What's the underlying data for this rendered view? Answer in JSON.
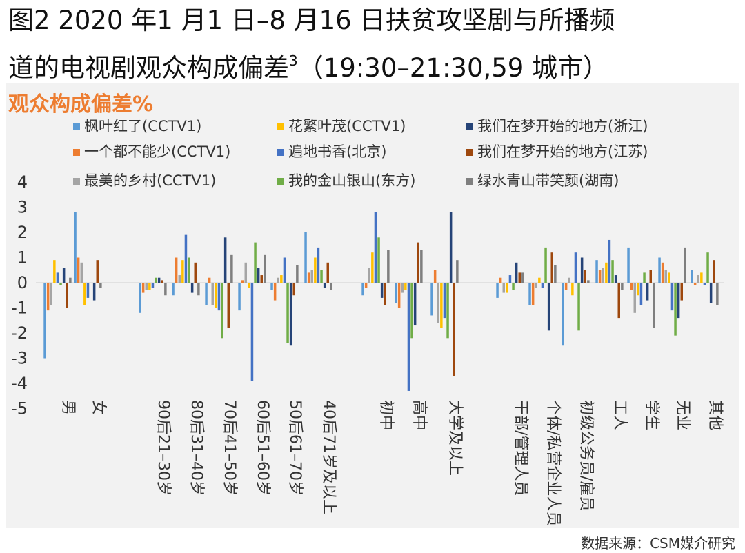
{
  "title_line1": "图2 2020 年1 月1 日–8 月16 日扶贫攻坚剧与所播频",
  "title_line2": "道的电视剧观众构成偏差",
  "title_footnote": "3",
  "title_line2_suffix": "（19:30–21:30,59 城市）",
  "source": "数据来源：CSM媒介研究",
  "chart_data": {
    "type": "bar",
    "title": "观众构成偏差%",
    "ylabel": "",
    "xlabel": "",
    "ylim": [
      -5,
      4
    ],
    "yticks": [
      4,
      3,
      2,
      1,
      0,
      -1,
      -2,
      -3,
      -4,
      -5
    ],
    "grid": false,
    "legend_position": "top",
    "categories": [
      "男",
      "女",
      "90后21–30岁",
      "80后31–40岁",
      "70后41–50岁",
      "60后51–60岁",
      "50后61–70岁",
      "40后71岁及以上",
      "初中",
      "高中",
      "大学及以上",
      "干部/管理人员",
      "个体/私营企业人员",
      "初级公务员/雇员",
      "工人",
      "学生",
      "无业",
      "其他"
    ],
    "category_groups": [
      [
        0,
        1
      ],
      [
        2,
        3,
        4,
        5,
        6,
        7
      ],
      [
        8,
        9,
        10
      ],
      [
        11,
        12,
        13,
        14,
        15,
        16,
        17
      ]
    ],
    "series": [
      {
        "name": "枫叶红了(CCTV1)",
        "color": "#5b9bd5",
        "values": [
          -3.0,
          2.8,
          -1.2,
          -0.5,
          -0.9,
          -1.1,
          -0.3,
          2.0,
          -0.5,
          -0.8,
          -1.3,
          -0.6,
          -0.9,
          -2.5,
          0.9,
          1.4,
          1.0,
          0.5
        ]
      },
      {
        "name": "一个都不能少(CCTV1)",
        "color": "#ed7d31",
        "values": [
          -1.1,
          1.0,
          -0.4,
          1.0,
          0.2,
          0.1,
          -0.7,
          0.4,
          -0.2,
          -1.0,
          0.5,
          0.2,
          -0.9,
          -0.3,
          0.5,
          -0.3,
          0.8,
          -0.1
        ]
      },
      {
        "name": "最美的乡村(CCTV1)",
        "color": "#a5a5a5",
        "values": [
          -0.9,
          0.8,
          -0.3,
          0.3,
          -0.9,
          0.8,
          0.2,
          0.5,
          0.6,
          -0.4,
          -1.6,
          -0.4,
          -0.2,
          0.2,
          0.6,
          -1.2,
          0.5,
          0.3
        ]
      },
      {
        "name": "花繁叶茂(CCTV1)",
        "color": "#ffc000",
        "values": [
          0.9,
          -0.9,
          -0.3,
          0.9,
          -1.0,
          -0.2,
          0.3,
          1.0,
          1.2,
          -0.3,
          -1.8,
          -0.4,
          0.2,
          -0.5,
          0.8,
          -0.5,
          0.4,
          0.4
        ]
      },
      {
        "name": "遍地书香(北京)",
        "color": "#4472c4",
        "values": [
          0.4,
          -0.6,
          -0.2,
          1.9,
          -1.1,
          -3.9,
          1.0,
          1.4,
          2.8,
          -4.3,
          -1.4,
          0.3,
          -0.2,
          1.2,
          1.7,
          -0.9,
          -1.1,
          -0.1
        ]
      },
      {
        "name": "我的金山银山(东方)",
        "color": "#70ad47",
        "values": [
          -0.1,
          0.0,
          0.2,
          1.0,
          -2.2,
          1.6,
          -2.4,
          0.5,
          1.8,
          -2.2,
          -2.2,
          -0.3,
          1.4,
          -1.9,
          0.9,
          0.4,
          -2.1,
          1.2
        ]
      },
      {
        "name": "我们在梦开始的地方(浙江)",
        "color": "#264478",
        "values": [
          0.6,
          -0.7,
          0.2,
          -0.4,
          1.8,
          0.6,
          -2.5,
          -0.2,
          -0.6,
          -1.7,
          2.8,
          0.8,
          -1.9,
          1.0,
          0.3,
          -0.7,
          -1.4,
          -0.8
        ]
      },
      {
        "name": "我们在梦开始的地方(江苏)",
        "color": "#9e480e",
        "values": [
          -1.0,
          0.9,
          0.1,
          0.8,
          -1.8,
          0.3,
          -0.5,
          0.8,
          -0.9,
          1.6,
          -3.7,
          0.4,
          1.2,
          0.5,
          -1.4,
          0.5,
          -0.7,
          0.9
        ]
      },
      {
        "name": "绿水青山带笑颜(湖南)",
        "color": "#7f7f7f",
        "values": [
          0.2,
          -0.2,
          -0.5,
          -0.5,
          1.1,
          1.1,
          0.7,
          -0.3,
          1.3,
          1.3,
          0.9,
          0.4,
          0.7,
          0.1,
          -0.3,
          -1.8,
          1.4,
          -0.9
        ]
      }
    ]
  }
}
